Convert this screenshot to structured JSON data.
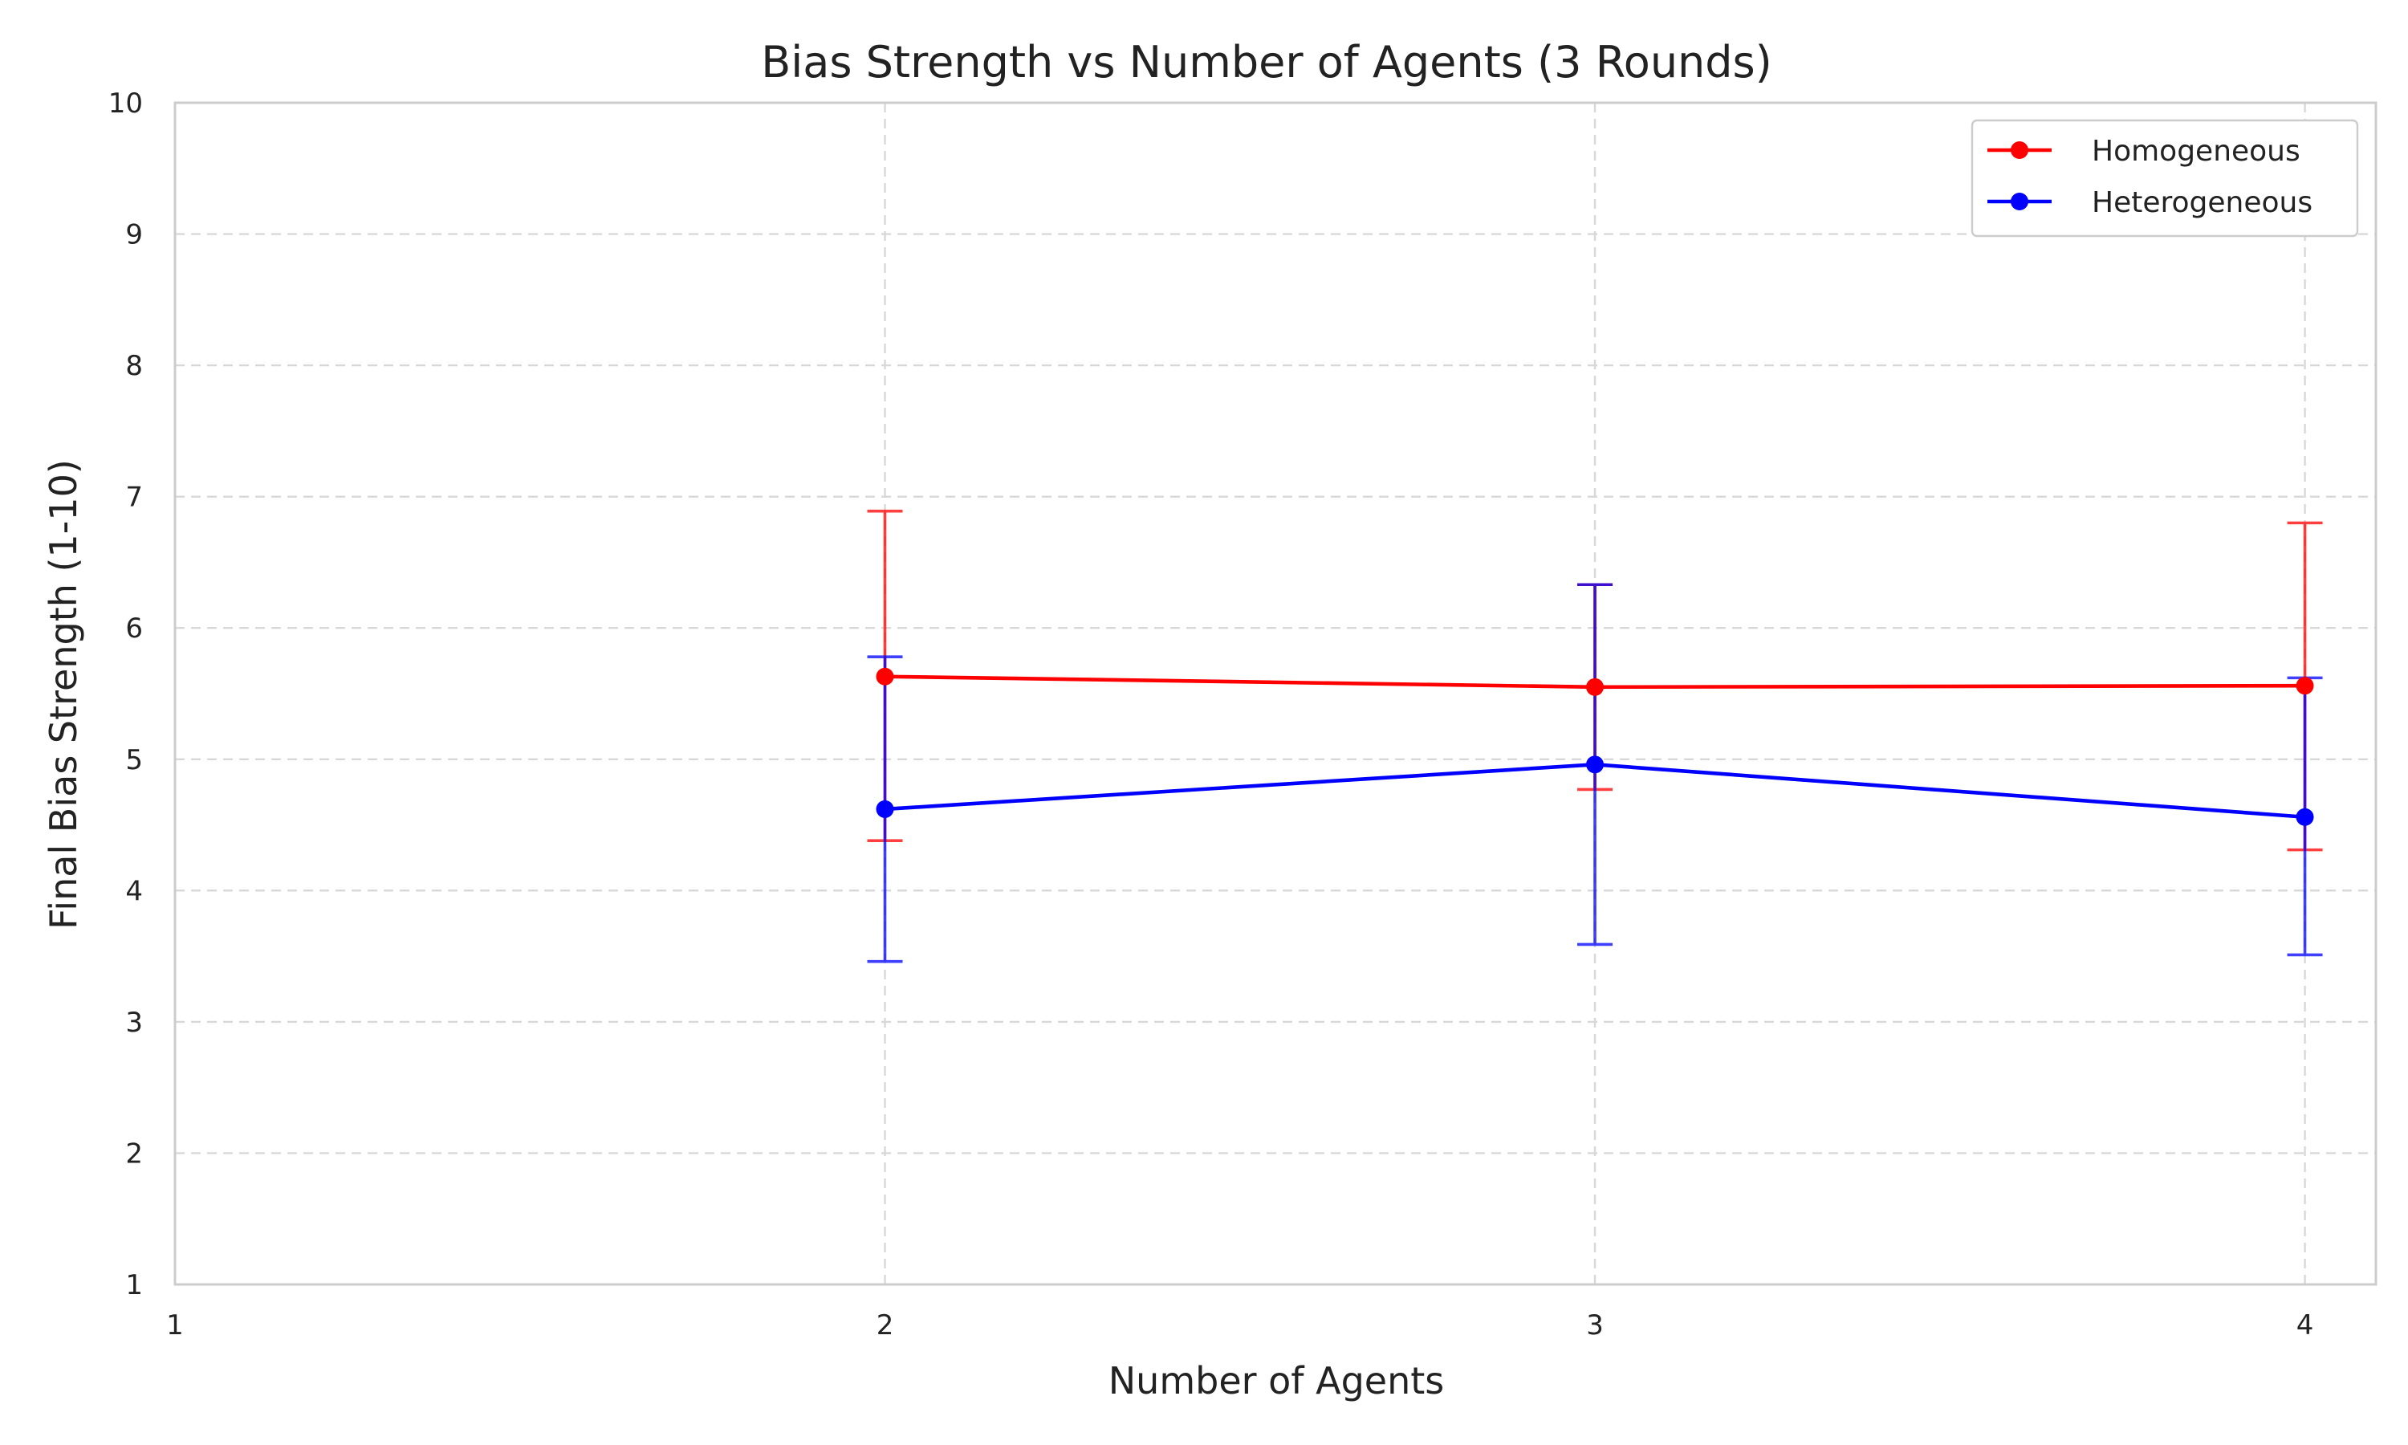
{
  "chart_data": {
    "type": "line",
    "title": "Bias Strength vs Number of Agents (3 Rounds)",
    "xlabel": "Number of Agents",
    "ylabel": "Final Bias Strength (1-10)",
    "xlim": [
      1,
      4.1
    ],
    "ylim": [
      1,
      10
    ],
    "xticks": [
      1,
      2,
      3,
      4
    ],
    "yticks": [
      1,
      2,
      3,
      4,
      5,
      6,
      7,
      8,
      9,
      10
    ],
    "grid": true,
    "legend_position": "top-right",
    "series": [
      {
        "name": "Homogeneous",
        "color": "#ff0000",
        "marker": "circle",
        "x": [
          2,
          3,
          4
        ],
        "y": [
          5.63,
          5.55,
          5.56
        ],
        "err_lower": [
          4.38,
          4.77,
          4.31
        ],
        "err_upper": [
          6.89,
          6.33,
          6.8
        ]
      },
      {
        "name": "Heterogeneous",
        "color": "#0000ff",
        "marker": "circle",
        "x": [
          2,
          3,
          4
        ],
        "y": [
          4.62,
          4.96,
          4.56
        ],
        "err_lower": [
          3.46,
          3.59,
          3.51
        ],
        "err_upper": [
          5.78,
          6.33,
          5.62
        ]
      }
    ]
  }
}
